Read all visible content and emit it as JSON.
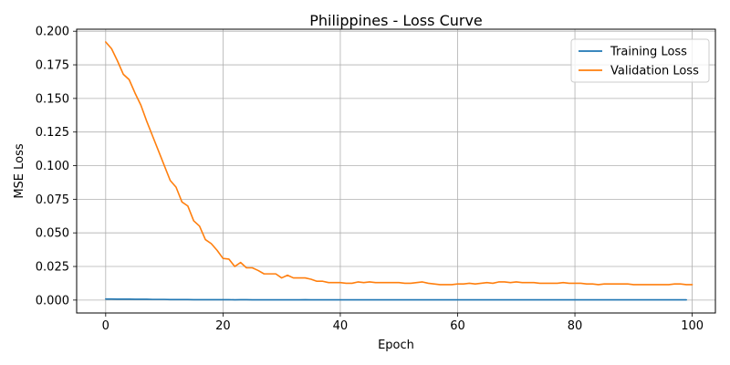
{
  "chart_data": {
    "type": "line",
    "title": "Philippines - Loss Curve",
    "xlabel": "Epoch",
    "ylabel": "MSE Loss",
    "xlim": [
      -4.95,
      103.95
    ],
    "ylim": [
      -0.0096,
      0.2015
    ],
    "xticks": [
      0,
      20,
      40,
      60,
      80,
      100
    ],
    "yticks": [
      0.0,
      0.025,
      0.05,
      0.075,
      0.1,
      0.125,
      0.15,
      0.175,
      0.2
    ],
    "xtick_labels": [
      "0",
      "20",
      "40",
      "60",
      "80",
      "100"
    ],
    "ytick_labels": [
      "0.000",
      "0.025",
      "0.050",
      "0.075",
      "0.100",
      "0.125",
      "0.150",
      "0.175",
      "0.200"
    ],
    "grid": true,
    "legend_position": "top-right",
    "series": [
      {
        "name": "Training Loss",
        "color": "#1f77b4",
        "x_start": 0,
        "values": [
          0.0008,
          0.0008,
          0.0007,
          0.0007,
          0.0007,
          0.0006,
          0.0006,
          0.0006,
          0.0005,
          0.0005,
          0.0005,
          0.0004,
          0.0004,
          0.0004,
          0.0004,
          0.0003,
          0.0003,
          0.0003,
          0.0003,
          0.0003,
          0.0003,
          0.0003,
          0.0002,
          0.0003,
          0.0003,
          0.0002,
          0.0002,
          0.0002,
          0.0002,
          0.0002,
          0.0002,
          0.0002,
          0.0002,
          0.0002,
          0.0003,
          0.0002,
          0.0002,
          0.0002,
          0.0002,
          0.0002,
          0.0002,
          0.0002,
          0.0002,
          0.0002,
          0.0002,
          0.0002,
          0.0002,
          0.0002,
          0.0002,
          0.0002,
          0.0002,
          0.0002,
          0.0002,
          0.0002,
          0.0002,
          0.0002,
          0.0002,
          0.0002,
          0.0002,
          0.0002,
          0.0002,
          0.0002,
          0.0002,
          0.0002,
          0.0002,
          0.0002,
          0.0002,
          0.0002,
          0.0002,
          0.0002,
          0.0002,
          0.0002,
          0.0002,
          0.0002,
          0.0002,
          0.0002,
          0.0002,
          0.0002,
          0.0002,
          0.0002,
          0.0002,
          0.0002,
          0.0002,
          0.0002,
          0.0002,
          0.0002,
          0.0002,
          0.0002,
          0.0002,
          0.0002,
          0.0002,
          0.0002,
          0.0002,
          0.0002,
          0.0002,
          0.0002,
          0.0002,
          0.0002,
          0.0002,
          0.0002
        ]
      },
      {
        "name": "Validation Loss",
        "color": "#ff7f0e",
        "x_start": 0,
        "values": [
          0.192,
          0.187,
          0.178,
          0.168,
          0.164,
          0.154,
          0.145,
          0.133,
          0.122,
          0.111,
          0.1,
          0.089,
          0.084,
          0.073,
          0.07,
          0.059,
          0.055,
          0.045,
          0.042,
          0.037,
          0.031,
          0.0305,
          0.025,
          0.028,
          0.024,
          0.024,
          0.022,
          0.0195,
          0.0195,
          0.0195,
          0.0165,
          0.0185,
          0.0165,
          0.0165,
          0.0165,
          0.0155,
          0.014,
          0.014,
          0.013,
          0.013,
          0.013,
          0.0125,
          0.0125,
          0.0135,
          0.013,
          0.0135,
          0.013,
          0.013,
          0.013,
          0.013,
          0.013,
          0.0125,
          0.0125,
          0.013,
          0.0135,
          0.0125,
          0.012,
          0.0115,
          0.0115,
          0.0115,
          0.012,
          0.012,
          0.0125,
          0.012,
          0.0125,
          0.013,
          0.0125,
          0.0135,
          0.0135,
          0.013,
          0.0135,
          0.013,
          0.013,
          0.013,
          0.0125,
          0.0125,
          0.0125,
          0.0125,
          0.013,
          0.0125,
          0.0125,
          0.0125,
          0.012,
          0.012,
          0.0115,
          0.012,
          0.012,
          0.012,
          0.012,
          0.012,
          0.0115,
          0.0115,
          0.0115,
          0.0115,
          0.0115,
          0.0115,
          0.0115,
          0.012,
          0.012,
          0.0115,
          0.0115
        ]
      }
    ]
  }
}
